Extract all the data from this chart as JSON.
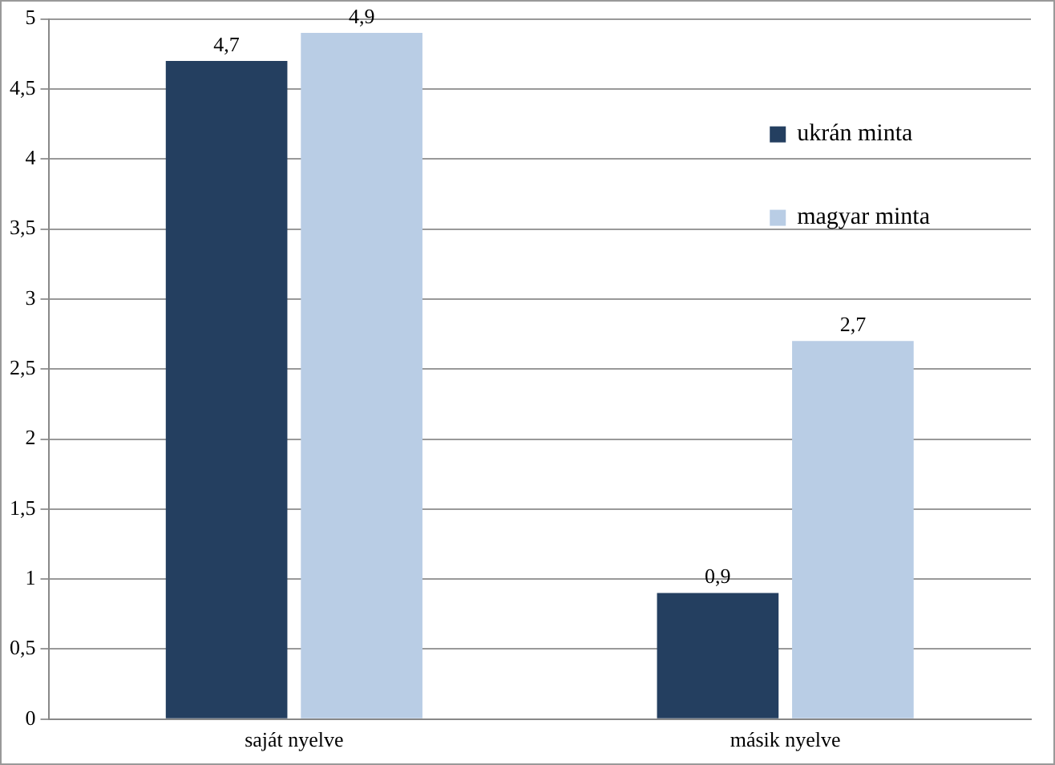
{
  "chart_data": {
    "type": "bar",
    "categories": [
      "saját nyelve",
      "másik nyelve"
    ],
    "series": [
      {
        "name": "ukrán minta",
        "color": "#243f60",
        "values": [
          4.7,
          0.9
        ],
        "value_labels": [
          "4,7",
          "0,9"
        ]
      },
      {
        "name": "magyar minta",
        "color": "#b9cde5",
        "values": [
          4.9,
          2.7
        ],
        "value_labels": [
          "4,9",
          "2,7"
        ]
      }
    ],
    "ylim": [
      0,
      5
    ],
    "yticks": [
      0,
      {
        "value": 0.5,
        "label": "0,5"
      },
      1,
      {
        "value": 1.5,
        "label": "1,5"
      },
      2,
      {
        "value": 2.5,
        "label": "2,5"
      },
      3,
      {
        "value": 3.5,
        "label": "3,5"
      },
      4,
      {
        "value": 4.5,
        "label": "4,5"
      },
      5
    ],
    "grid": "y",
    "legend": "top right"
  }
}
